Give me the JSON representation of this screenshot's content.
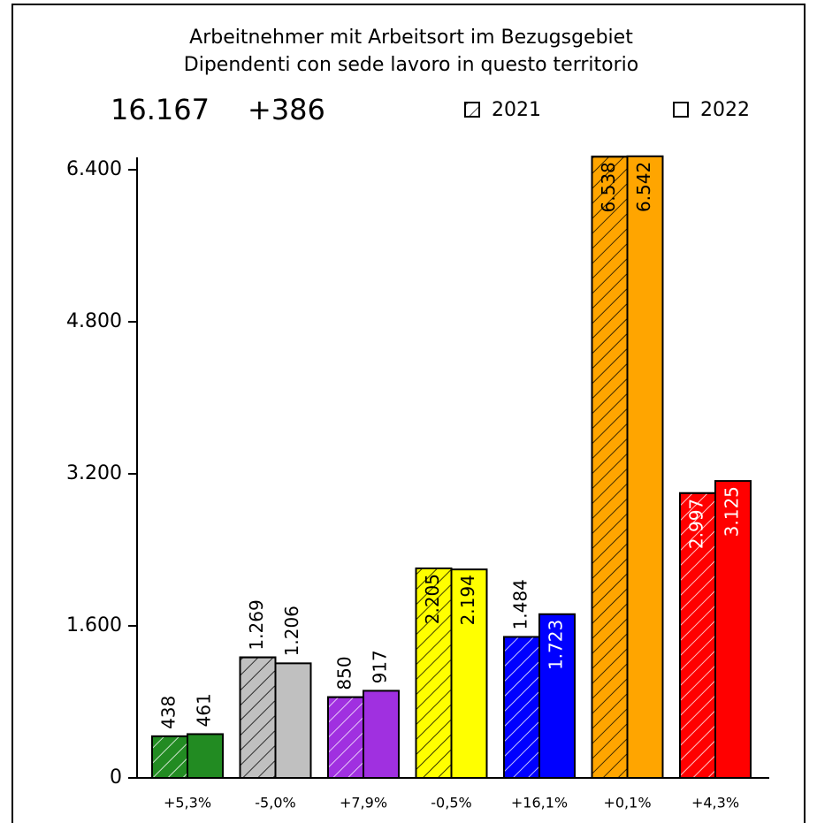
{
  "chart_data": {
    "type": "bar",
    "title": "Arbeitnehmer mit Arbeitsort im Bezugsgebiet",
    "subtitle": "Dipendenti con sede lavoro in questo territorio",
    "annotations": [
      "16.167",
      "+386"
    ],
    "categories": [
      "+5,3%",
      "-5,0%",
      "+7,9%",
      "-0,5%",
      "+16,1%",
      "+0,1%",
      "+4,3%"
    ],
    "colors": [
      "#228b22",
      "#c0c0c0",
      "#a030e0",
      "#ffff00",
      "#0000ff",
      "#ffa500",
      "#ff0000"
    ],
    "hatch_colors": [
      "#ffffff",
      "#000000",
      "#ffffff",
      "#000000",
      "#ffffff",
      "#000000",
      "#ffffff"
    ],
    "series": [
      {
        "name": "2021",
        "hatched": true,
        "values": [
          438,
          1269,
          850,
          2205,
          1484,
          6538,
          2997
        ],
        "value_labels": [
          "438",
          "1.269",
          "850",
          "2.205",
          "1.484",
          "6.538",
          "2.997"
        ]
      },
      {
        "name": "2022",
        "hatched": false,
        "values": [
          461,
          1206,
          917,
          2194,
          1723,
          6542,
          3125
        ],
        "value_labels": [
          "461",
          "1.206",
          "917",
          "2.194",
          "1.723",
          "6.542",
          "3.125"
        ]
      }
    ],
    "ylim": [
      0,
      6540
    ],
    "yticks": [
      0,
      {
        "value": 1600,
        "label": "1.600"
      },
      {
        "value": 3200,
        "label": "3.200"
      },
      {
        "value": 4800,
        "label": "4.800"
      },
      {
        "value": 6400,
        "label": "6.400"
      }
    ],
    "legend": "top-right"
  }
}
